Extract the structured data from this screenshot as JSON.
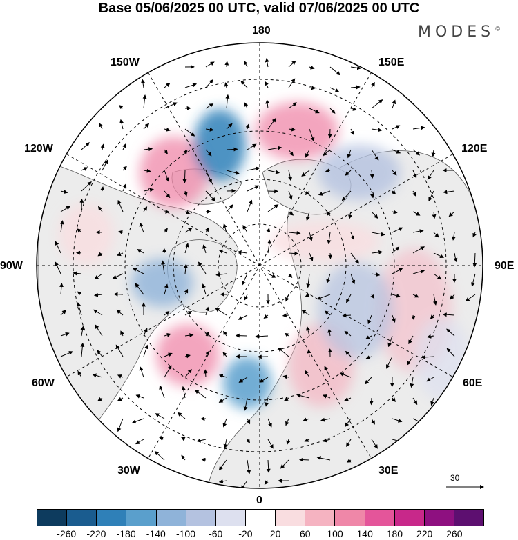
{
  "title": "Base 05/06/2025 00 UTC, valid 07/06/2025 00 UTC",
  "brand": {
    "text": "MODES",
    "mark": "©"
  },
  "longitude_labels": [
    "180",
    "150E",
    "120E",
    "90E",
    "60E",
    "30E",
    "0",
    "30W",
    "60W",
    "90W",
    "120W",
    "150W"
  ],
  "reference_vector": {
    "label": "30"
  },
  "colorbar": {
    "colors": [
      "#0d3b5e",
      "#1a5c8f",
      "#2f80b8",
      "#5a9fcc",
      "#8fb3d9",
      "#b4c2e0",
      "#dde0ef",
      "#ffffff",
      "#f9dde0",
      "#f5b3c1",
      "#ef87a8",
      "#e4559a",
      "#c8288a",
      "#8e1080",
      "#5d0f70"
    ],
    "ticks": [
      "-260",
      "-220",
      "-180",
      "-140",
      "-100",
      "-60",
      "-20",
      "20",
      "60",
      "100",
      "140",
      "180",
      "220",
      "260"
    ]
  },
  "map": {
    "projection": "north-polar-stereographic",
    "land_color": "#ececec",
    "ocean_color": "#ffffff",
    "field": "geopotential height anomaly with wind vectors"
  }
}
